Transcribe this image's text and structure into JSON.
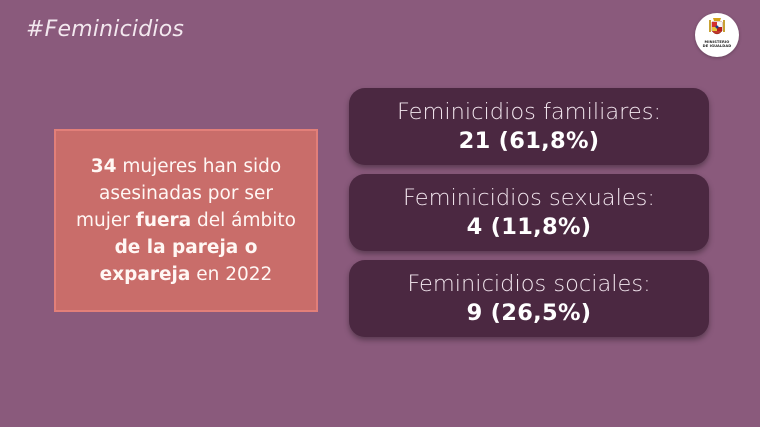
{
  "hashtag": "#Feminicidios",
  "logo": {
    "icon": "spain-coat-of-arms-icon",
    "line1": "MINISTERIO",
    "line2": "DE IGUALDAD"
  },
  "summary": {
    "count": "34",
    "part1": " mujeres han sido asesinadas por ser mujer ",
    "bold1": "fuera",
    "part2": " del ámbito ",
    "bold2": "de la pareja o expareja",
    "part3": " en 2022"
  },
  "cards": [
    {
      "label": "Feminicidios familiares:",
      "value": "21 (61,8%)"
    },
    {
      "label": "Feminicidios sexuales:",
      "value": "4 (11,8%)"
    },
    {
      "label": "Feminicidios sociales:",
      "value": "9 (26,5%)"
    }
  ],
  "colors": {
    "background": "#8a5a7c",
    "summary_box": "#c96d6a",
    "card": "#4b2841"
  }
}
